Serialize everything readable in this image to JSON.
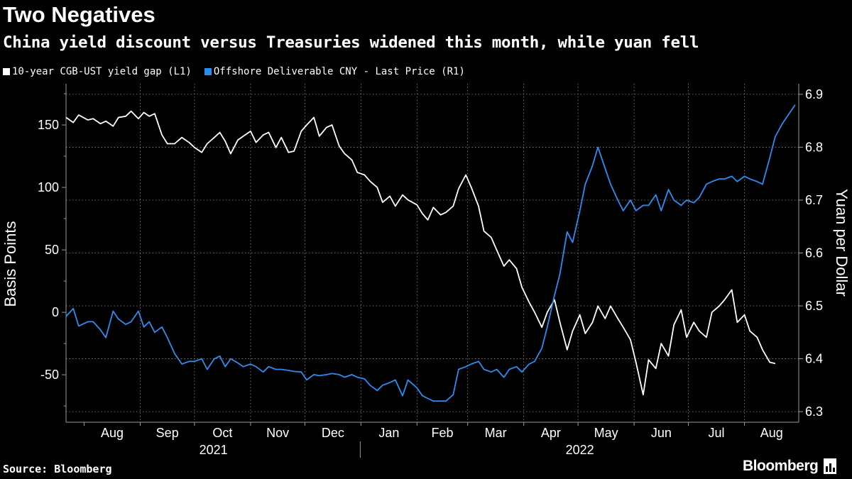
{
  "header": {
    "title": "Two Negatives",
    "subtitle": "China yield discount versus Treasuries widened this month, while yuan fell"
  },
  "legend": {
    "items": [
      {
        "label": "10-year CGB-UST yield gap (L1)",
        "color": "#ffffff"
      },
      {
        "label": "Offshore Deliverable CNY - Last Price (R1)",
        "color": "#2d8cf0"
      }
    ]
  },
  "footer": {
    "source": "Source: Bloomberg",
    "brand": "Bloomberg"
  },
  "chart_data": {
    "type": "line",
    "title": "Two Negatives",
    "subtitle": "China yield discount versus Treasuries widened this month, while yuan fell",
    "x_range": [
      "2021-07-22",
      "2022-08-31"
    ],
    "month_labels": [
      "Aug",
      "Sep",
      "Oct",
      "Nov",
      "Dec",
      "Jan",
      "Feb",
      "Mar",
      "Apr",
      "May",
      "Jun",
      "Jul",
      "Aug"
    ],
    "year_labels": [
      "2021",
      "2022"
    ],
    "left_axis": {
      "label": "Basis Points",
      "range": [
        -88,
        183
      ],
      "ticks": [
        150,
        100,
        50,
        0,
        -50
      ],
      "tick_labels": [
        "150",
        "100",
        "50",
        "0",
        "-50"
      ]
    },
    "right_axis": {
      "label": "Yuan per Dollar",
      "range": [
        6.28,
        6.92
      ],
      "ticks": [
        6.9,
        6.8,
        6.7,
        6.6,
        6.5,
        6.4,
        6.3
      ],
      "tick_labels": [
        "6.9",
        "6.8",
        "6.7",
        "6.6",
        "6.5",
        "6.4",
        "6.3"
      ]
    },
    "series": [
      {
        "name": "10-year CGB-UST yield gap (L1)",
        "axis": "left",
        "color": "#ffffff",
        "points": [
          [
            "2021-07-22",
            156
          ],
          [
            "2021-07-26",
            152
          ],
          [
            "2021-07-29",
            158
          ],
          [
            "2021-08-03",
            154
          ],
          [
            "2021-08-06",
            155
          ],
          [
            "2021-08-10",
            151
          ],
          [
            "2021-08-13",
            153
          ],
          [
            "2021-08-17",
            149
          ],
          [
            "2021-08-20",
            156
          ],
          [
            "2021-08-24",
            157
          ],
          [
            "2021-08-27",
            161
          ],
          [
            "2021-08-31",
            155
          ],
          [
            "2021-09-03",
            160
          ],
          [
            "2021-09-06",
            157
          ],
          [
            "2021-09-09",
            159
          ],
          [
            "2021-09-13",
            142
          ],
          [
            "2021-09-16",
            135
          ],
          [
            "2021-09-20",
            135
          ],
          [
            "2021-09-24",
            140
          ],
          [
            "2021-09-28",
            136
          ],
          [
            "2021-10-01",
            132
          ],
          [
            "2021-10-05",
            128
          ],
          [
            "2021-10-08",
            135
          ],
          [
            "2021-10-12",
            140
          ],
          [
            "2021-10-15",
            144
          ],
          [
            "2021-10-18",
            137
          ],
          [
            "2021-10-21",
            127
          ],
          [
            "2021-10-25",
            138
          ],
          [
            "2021-10-28",
            141
          ],
          [
            "2021-11-01",
            145
          ],
          [
            "2021-11-04",
            136
          ],
          [
            "2021-11-08",
            142
          ],
          [
            "2021-11-11",
            144
          ],
          [
            "2021-11-15",
            132
          ],
          [
            "2021-11-18",
            140
          ],
          [
            "2021-11-22",
            128
          ],
          [
            "2021-11-25",
            129
          ],
          [
            "2021-11-29",
            145
          ],
          [
            "2021-12-02",
            150
          ],
          [
            "2021-12-06",
            156
          ],
          [
            "2021-12-09",
            141
          ],
          [
            "2021-12-13",
            148
          ],
          [
            "2021-12-16",
            150
          ],
          [
            "2021-12-20",
            133
          ],
          [
            "2021-12-23",
            127
          ],
          [
            "2021-12-27",
            122
          ],
          [
            "2021-12-30",
            112
          ],
          [
            "2022-01-03",
            110
          ],
          [
            "2022-01-06",
            105
          ],
          [
            "2022-01-10",
            100
          ],
          [
            "2022-01-13",
            88
          ],
          [
            "2022-01-17",
            93
          ],
          [
            "2022-01-20",
            85
          ],
          [
            "2022-01-24",
            94
          ],
          [
            "2022-01-27",
            90
          ],
          [
            "2022-02-01",
            86
          ],
          [
            "2022-02-04",
            79
          ],
          [
            "2022-02-07",
            74
          ],
          [
            "2022-02-10",
            84
          ],
          [
            "2022-02-14",
            78
          ],
          [
            "2022-02-17",
            80
          ],
          [
            "2022-02-21",
            85
          ],
          [
            "2022-02-24",
            99
          ],
          [
            "2022-02-28",
            110
          ],
          [
            "2022-03-03",
            100
          ],
          [
            "2022-03-07",
            85
          ],
          [
            "2022-03-10",
            65
          ],
          [
            "2022-03-14",
            60
          ],
          [
            "2022-03-17",
            50
          ],
          [
            "2022-03-21",
            37
          ],
          [
            "2022-03-24",
            42
          ],
          [
            "2022-03-28",
            35
          ],
          [
            "2022-03-31",
            20
          ],
          [
            "2022-04-04",
            8
          ],
          [
            "2022-04-07",
            0
          ],
          [
            "2022-04-11",
            -12
          ],
          [
            "2022-04-14",
            0
          ],
          [
            "2022-04-18",
            10
          ],
          [
            "2022-04-21",
            -8
          ],
          [
            "2022-04-25",
            -30
          ],
          [
            "2022-04-28",
            -15
          ],
          [
            "2022-05-02",
            -2
          ],
          [
            "2022-05-05",
            -17
          ],
          [
            "2022-05-09",
            -8
          ],
          [
            "2022-05-12",
            5
          ],
          [
            "2022-05-16",
            -5
          ],
          [
            "2022-05-19",
            5
          ],
          [
            "2022-05-23",
            -5
          ],
          [
            "2022-05-26",
            -12
          ],
          [
            "2022-05-30",
            -22
          ],
          [
            "2022-06-02",
            -40
          ],
          [
            "2022-06-06",
            -66
          ],
          [
            "2022-06-09",
            -38
          ],
          [
            "2022-06-13",
            -45
          ],
          [
            "2022-06-16",
            -25
          ],
          [
            "2022-06-20",
            -35
          ],
          [
            "2022-06-23",
            -10
          ],
          [
            "2022-06-27",
            2
          ],
          [
            "2022-06-30",
            -20
          ],
          [
            "2022-07-04",
            -8
          ],
          [
            "2022-07-07",
            -15
          ],
          [
            "2022-07-11",
            -20
          ],
          [
            "2022-07-14",
            0
          ],
          [
            "2022-07-18",
            5
          ],
          [
            "2022-07-21",
            10
          ],
          [
            "2022-07-25",
            18
          ],
          [
            "2022-07-28",
            -8
          ],
          [
            "2022-08-01",
            -2
          ],
          [
            "2022-08-04",
            -15
          ],
          [
            "2022-08-08",
            -20
          ],
          [
            "2022-08-11",
            -30
          ],
          [
            "2022-08-15",
            -40
          ],
          [
            "2022-08-18",
            -41
          ]
        ]
      },
      {
        "name": "Offshore Deliverable CNY - Last Price (R1)",
        "axis": "right",
        "color": "#2d8cf0",
        "points": [
          [
            "2021-07-22",
            6.48
          ],
          [
            "2021-07-26",
            6.495
          ],
          [
            "2021-07-29",
            6.462
          ],
          [
            "2021-08-03",
            6.47
          ],
          [
            "2021-08-06",
            6.47
          ],
          [
            "2021-08-10",
            6.455
          ],
          [
            "2021-08-13",
            6.44
          ],
          [
            "2021-08-17",
            6.49
          ],
          [
            "2021-08-20",
            6.475
          ],
          [
            "2021-08-24",
            6.465
          ],
          [
            "2021-08-27",
            6.47
          ],
          [
            "2021-08-31",
            6.49
          ],
          [
            "2021-09-03",
            6.46
          ],
          [
            "2021-09-06",
            6.47
          ],
          [
            "2021-09-09",
            6.45
          ],
          [
            "2021-09-13",
            6.46
          ],
          [
            "2021-09-16",
            6.44
          ],
          [
            "2021-09-20",
            6.41
          ],
          [
            "2021-09-24",
            6.39
          ],
          [
            "2021-09-28",
            6.395
          ],
          [
            "2021-10-01",
            6.395
          ],
          [
            "2021-10-05",
            6.4
          ],
          [
            "2021-10-08",
            6.38
          ],
          [
            "2021-10-12",
            6.4
          ],
          [
            "2021-10-15",
            6.405
          ],
          [
            "2021-10-18",
            6.385
          ],
          [
            "2021-10-21",
            6.4
          ],
          [
            "2021-10-25",
            6.392
          ],
          [
            "2021-10-28",
            6.385
          ],
          [
            "2021-11-01",
            6.39
          ],
          [
            "2021-11-04",
            6.385
          ],
          [
            "2021-11-08",
            6.375
          ],
          [
            "2021-11-11",
            6.385
          ],
          [
            "2021-11-15",
            6.38
          ],
          [
            "2021-11-18",
            6.38
          ],
          [
            "2021-11-22",
            6.378
          ],
          [
            "2021-11-25",
            6.376
          ],
          [
            "2021-11-29",
            6.375
          ],
          [
            "2021-12-02",
            6.36
          ],
          [
            "2021-12-06",
            6.37
          ],
          [
            "2021-12-09",
            6.368
          ],
          [
            "2021-12-13",
            6.37
          ],
          [
            "2021-12-16",
            6.372
          ],
          [
            "2021-12-20",
            6.37
          ],
          [
            "2021-12-23",
            6.365
          ],
          [
            "2021-12-27",
            6.37
          ],
          [
            "2021-12-30",
            6.365
          ],
          [
            "2022-01-03",
            6.362
          ],
          [
            "2022-01-06",
            6.35
          ],
          [
            "2022-01-10",
            6.34
          ],
          [
            "2022-01-13",
            6.35
          ],
          [
            "2022-01-17",
            6.355
          ],
          [
            "2022-01-20",
            6.36
          ],
          [
            "2022-01-24",
            6.33
          ],
          [
            "2022-01-27",
            6.36
          ],
          [
            "2022-02-01",
            6.345
          ],
          [
            "2022-02-04",
            6.33
          ],
          [
            "2022-02-07",
            6.325
          ],
          [
            "2022-02-10",
            6.32
          ],
          [
            "2022-02-14",
            6.32
          ],
          [
            "2022-02-17",
            6.32
          ],
          [
            "2022-02-21",
            6.332
          ],
          [
            "2022-02-24",
            6.38
          ],
          [
            "2022-02-28",
            6.385
          ],
          [
            "2022-03-03",
            6.39
          ],
          [
            "2022-03-07",
            6.395
          ],
          [
            "2022-03-10",
            6.38
          ],
          [
            "2022-03-14",
            6.375
          ],
          [
            "2022-03-17",
            6.38
          ],
          [
            "2022-03-21",
            6.365
          ],
          [
            "2022-03-24",
            6.38
          ],
          [
            "2022-03-28",
            6.385
          ],
          [
            "2022-03-31",
            6.375
          ],
          [
            "2022-04-04",
            6.39
          ],
          [
            "2022-04-07",
            6.395
          ],
          [
            "2022-04-11",
            6.42
          ],
          [
            "2022-04-14",
            6.46
          ],
          [
            "2022-04-18",
            6.52
          ],
          [
            "2022-04-21",
            6.56
          ],
          [
            "2022-04-25",
            6.64
          ],
          [
            "2022-04-28",
            6.62
          ],
          [
            "2022-05-02",
            6.68
          ],
          [
            "2022-05-05",
            6.73
          ],
          [
            "2022-05-09",
            6.765
          ],
          [
            "2022-05-12",
            6.8
          ],
          [
            "2022-05-16",
            6.76
          ],
          [
            "2022-05-19",
            6.73
          ],
          [
            "2022-05-23",
            6.7
          ],
          [
            "2022-05-26",
            6.68
          ],
          [
            "2022-05-30",
            6.7
          ],
          [
            "2022-06-02",
            6.68
          ],
          [
            "2022-06-06",
            6.69
          ],
          [
            "2022-06-09",
            6.69
          ],
          [
            "2022-06-13",
            6.71
          ],
          [
            "2022-06-16",
            6.68
          ],
          [
            "2022-06-20",
            6.72
          ],
          [
            "2022-06-23",
            6.7
          ],
          [
            "2022-06-27",
            6.69
          ],
          [
            "2022-06-30",
            6.7
          ],
          [
            "2022-07-04",
            6.695
          ],
          [
            "2022-07-07",
            6.705
          ],
          [
            "2022-07-11",
            6.73
          ],
          [
            "2022-07-14",
            6.735
          ],
          [
            "2022-07-18",
            6.74
          ],
          [
            "2022-07-21",
            6.74
          ],
          [
            "2022-07-25",
            6.745
          ],
          [
            "2022-07-28",
            6.735
          ],
          [
            "2022-08-01",
            6.745
          ],
          [
            "2022-08-04",
            6.74
          ],
          [
            "2022-08-08",
            6.735
          ],
          [
            "2022-08-11",
            6.73
          ],
          [
            "2022-08-15",
            6.78
          ],
          [
            "2022-08-18",
            6.82
          ],
          [
            "2022-08-22",
            6.845
          ],
          [
            "2022-08-25",
            6.86
          ],
          [
            "2022-08-29",
            6.88
          ]
        ]
      }
    ],
    "grid": true
  }
}
